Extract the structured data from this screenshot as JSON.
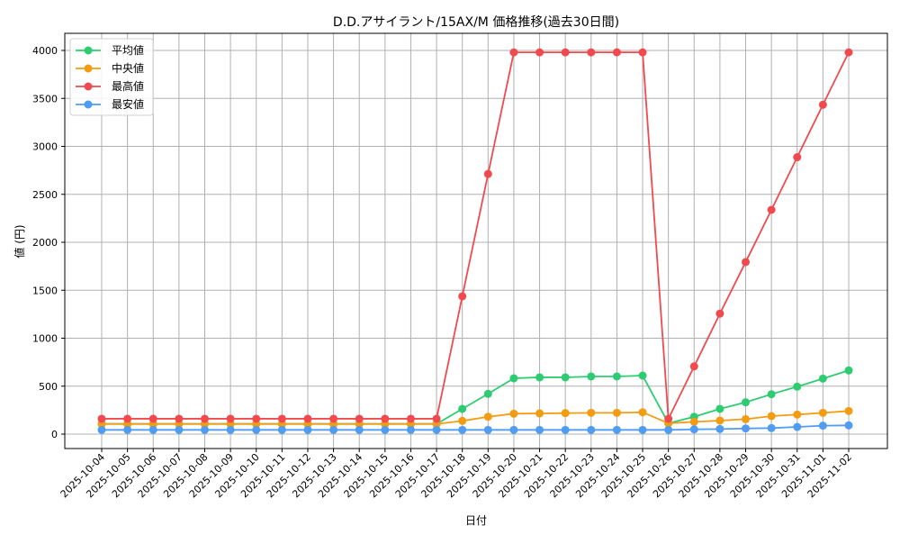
{
  "chart_data": {
    "type": "line",
    "title": "D.D.アサイラント/15AX/M 価格推移(過去30日間)",
    "xlabel": "日付",
    "ylabel": "値 (円)",
    "ylim": [
      -150,
      4200
    ],
    "yticks": [
      0,
      500,
      1000,
      1500,
      2000,
      2500,
      3000,
      3500,
      4000
    ],
    "grid": true,
    "legend_position": "upper left",
    "x": [
      "2025-10-04",
      "2025-10-05",
      "2025-10-06",
      "2025-10-07",
      "2025-10-08",
      "2025-10-09",
      "2025-10-10",
      "2025-10-11",
      "2025-10-12",
      "2025-10-13",
      "2025-10-14",
      "2025-10-15",
      "2025-10-16",
      "2025-10-17",
      "2025-10-18",
      "2025-10-19",
      "2025-10-20",
      "2025-10-21",
      "2025-10-22",
      "2025-10-23",
      "2025-10-24",
      "2025-10-25",
      "2025-10-26",
      "2025-10-27",
      "2025-10-28",
      "2025-10-29",
      "2025-10-30",
      "2025-10-31",
      "2025-11-01",
      "2025-11-02"
    ],
    "series": [
      {
        "name": "平均値",
        "color": "#2ecc71",
        "values": [
          106,
          106,
          106,
          106,
          106,
          106,
          106,
          106,
          106,
          106,
          106,
          106,
          106,
          106,
          263,
          420,
          582,
          592,
          592,
          601,
          601,
          610,
          113,
          181,
          263,
          332,
          416,
          495,
          579,
          664
        ]
      },
      {
        "name": "中央値",
        "color": "#f39c12",
        "values": [
          106,
          106,
          106,
          106,
          106,
          106,
          106,
          106,
          106,
          106,
          106,
          106,
          106,
          106,
          138,
          181,
          213,
          216,
          219,
          222,
          222,
          228,
          113,
          128,
          141,
          156,
          188,
          204,
          222,
          241
        ]
      },
      {
        "name": "最高値",
        "color": "#f04a4f",
        "values": [
          160,
          160,
          160,
          160,
          160,
          160,
          160,
          160,
          160,
          160,
          160,
          160,
          160,
          160,
          1437,
          2712,
          3980,
          3980,
          3980,
          3980,
          3980,
          3980,
          160,
          706,
          1256,
          1794,
          2338,
          2887,
          3434,
          3980
        ]
      },
      {
        "name": "最安値",
        "color": "#4f9cf2",
        "values": [
          44,
          44,
          44,
          44,
          44,
          44,
          44,
          44,
          44,
          44,
          44,
          44,
          44,
          44,
          44,
          44,
          44,
          44,
          44,
          44,
          44,
          44,
          44,
          50,
          53,
          59,
          63,
          75,
          88,
          91
        ]
      }
    ]
  }
}
